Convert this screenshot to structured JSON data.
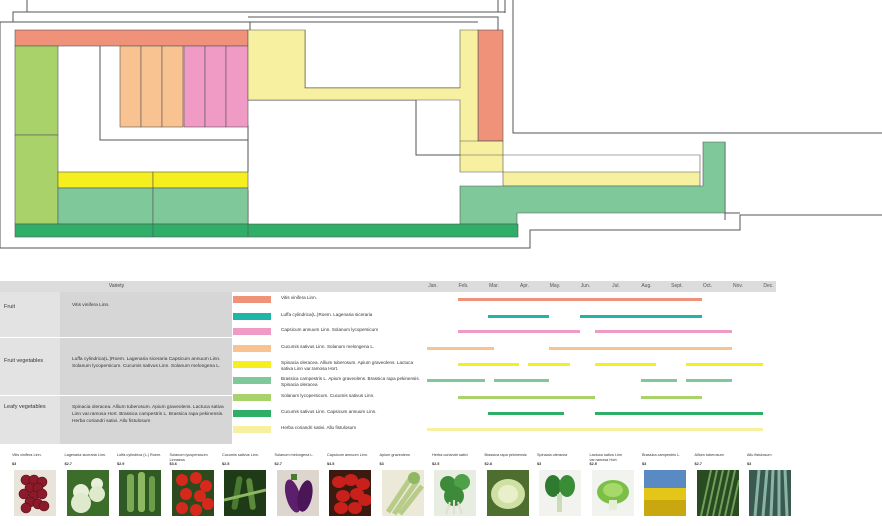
{
  "table": {
    "variety_header": "Variety",
    "categories": [
      {
        "name": "Fruit",
        "varieties": "Vitis vinifera Linn."
      },
      {
        "name": "Fruit vegetables",
        "varieties": "Luffa cylindrica(L.)Roem.  Lagenaria siceraria  Capsicum annuum Linn.  Solanum lycopersicum.  Cucumis sativus Linn.  Solanum melongena L."
      },
      {
        "name": "Leafy vegetables",
        "varieties": "Spinacia oleracea.  Allium tuberosum.  Apium graveolens.  Lactuca sativa Linn var.ramosa Hort.  Brassica campestris L.  Brassica rapa pekinensis.  Herba coriandri sativi.  Allu fistulosum"
      }
    ],
    "legend": [
      {
        "color": "#f0917a",
        "label": "Vitis vinifera Linn."
      },
      {
        "color": "#1fb5a8",
        "label": "Luffa cylindrica(L.)Roem.  Lagenaria siceraria"
      },
      {
        "color": "#f09ac6",
        "label": "Capsicum annuum Linn.  Solanum lycopersicum"
      },
      {
        "color": "#f9c391",
        "label": "Cucumis sativus Linn.  Solanum melongena L."
      },
      {
        "color": "#f5ef1f",
        "label": "Spinacia oleracea.  Allium tuberosum.  Apium graveolens.  Lactuca sativa Linn var.ramosa Hort."
      },
      {
        "color": "#7fc89a",
        "label": "Brassica campestris L.  Apium graveolens.  Brassica rapa pekinensis.  Spinacia oleracea"
      },
      {
        "color": "#a9d36a",
        "label": "Solanum lycopersicum.  Cucumis sativus Linn."
      },
      {
        "color": "#2eae67",
        "label": "Cucumis sativus Linn.  Capsicum annuum Linn."
      },
      {
        "color": "#f7f0a0",
        "label": "Herba coriandri sativi.  Allu fistulosum"
      }
    ],
    "months": [
      "Jan.",
      "Feb.",
      "Mar.",
      "Apr.",
      "May.",
      "Jun.",
      "Jul.",
      "Aug.",
      "Sept.",
      "Oct.",
      "Nov.",
      "Dec."
    ],
    "schedule": [
      [
        [
          1.0,
          9.0
        ]
      ],
      [
        [
          2.0,
          4.0
        ],
        [
          5.0,
          9.0
        ]
      ],
      [
        [
          1.0,
          5.0
        ],
        [
          5.5,
          10.0
        ]
      ],
      [
        [
          0.0,
          2.2
        ],
        [
          4.0,
          10.0
        ]
      ],
      [
        [
          1.0,
          3.0
        ],
        [
          3.3,
          4.7
        ],
        [
          5.5,
          7.5
        ],
        [
          8.5,
          11.0
        ]
      ],
      [
        [
          0.0,
          1.9
        ],
        [
          2.2,
          4.0
        ],
        [
          7.0,
          8.2
        ],
        [
          8.5,
          10.0
        ]
      ],
      [
        [
          1.0,
          5.5
        ],
        [
          7.0,
          9.0
        ]
      ],
      [
        [
          2.0,
          4.5
        ],
        [
          5.5,
          11.0
        ]
      ],
      [
        [
          0.0,
          11.0
        ]
      ]
    ]
  },
  "gallery": [
    {
      "name": "Vitis vinifera Linn.",
      "price": "$3",
      "icon": "grapes"
    },
    {
      "name": "Lagenaria siceraria Linn.",
      "price": "$2.7",
      "icon": "gourd"
    },
    {
      "name": "Luffa cylindrica (L.) Roem.",
      "price": "$2.9",
      "icon": "luffa"
    },
    {
      "name": "Solanum lycopersicum Linnaeus",
      "price": "$3.6",
      "icon": "tomato"
    },
    {
      "name": "Cucumis sativus Linn.",
      "price": "$2.5",
      "icon": "cucumber"
    },
    {
      "name": "Solanum melongena L.",
      "price": "$2.7",
      "icon": "eggplant"
    },
    {
      "name": "Capsicum annuum Linn.",
      "price": "$4.5",
      "icon": "pepper"
    },
    {
      "name": "Apium graveolens",
      "price": "$3",
      "icon": "celery"
    },
    {
      "name": "Herba coriandri sativi",
      "price": "$2.5",
      "icon": "coriander"
    },
    {
      "name": "Brassica rapa pekinensis",
      "price": "$2.8",
      "icon": "cabbage"
    },
    {
      "name": "Spinacia oleracea",
      "price": "$3",
      "icon": "spinach"
    },
    {
      "name": "Lactuca sativa Linn var.ramosa Hort.",
      "price": "$2.5",
      "icon": "lettuce"
    },
    {
      "name": "Brassica campestris L.",
      "price": "$3",
      "icon": "rapeseed"
    },
    {
      "name": "Allium tuberosum",
      "price": "$2.7",
      "icon": "chives"
    },
    {
      "name": "Allu fistulosum",
      "price": "$3",
      "icon": "scallion"
    }
  ]
}
